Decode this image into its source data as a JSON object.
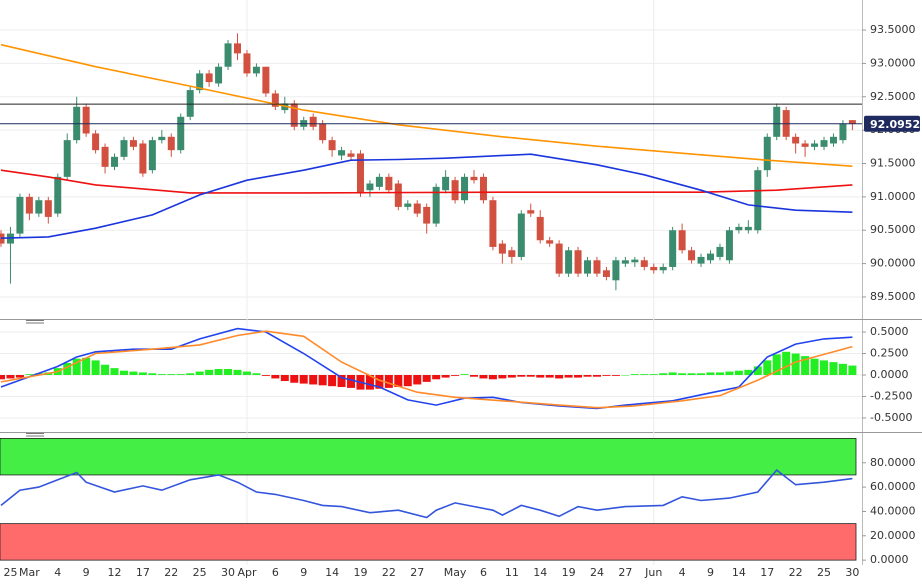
{
  "chart_data": [
    {
      "type": "candlestick",
      "x": [
        "Feb 24",
        "Feb 25",
        "Feb 26",
        "Mar 1",
        "Mar 2",
        "Mar 3",
        "Mar 4",
        "Mar 5",
        "Mar 8",
        "Mar 9",
        "Mar 10",
        "Mar 11",
        "Mar 12",
        "Mar 15",
        "Mar 16",
        "Mar 17",
        "Mar 18",
        "Mar 19",
        "Mar 22",
        "Mar 23",
        "Mar 24",
        "Mar 25",
        "Mar 26",
        "Mar 29",
        "Mar 30",
        "Mar 31",
        "Apr 1",
        "Apr 2",
        "Apr 5",
        "Apr 6",
        "Apr 7",
        "Apr 8",
        "Apr 9",
        "Apr 12",
        "Apr 13",
        "Apr 14",
        "Apr 15",
        "Apr 16",
        "Apr 19",
        "Apr 20",
        "Apr 21",
        "Apr 22",
        "Apr 23",
        "Apr 26",
        "Apr 27",
        "Apr 28",
        "Apr 29",
        "Apr 30",
        "May 3",
        "May 4",
        "May 5",
        "May 6",
        "May 7",
        "May 10",
        "May 11",
        "May 12",
        "May 13",
        "May 14",
        "May 17",
        "May 18",
        "May 19",
        "May 20",
        "May 21",
        "May 24",
        "May 25",
        "May 26",
        "May 27",
        "May 28",
        "May 31",
        "Jun 1",
        "Jun 2",
        "Jun 3",
        "Jun 4",
        "Jun 7",
        "Jun 8",
        "Jun 9",
        "Jun 10",
        "Jun 11",
        "Jun 14",
        "Jun 15",
        "Jun 16",
        "Jun 17",
        "Jun 18",
        "Jun 21",
        "Jun 22",
        "Jun 23",
        "Jun 24",
        "Jun 25",
        "Jun 28",
        "Jun 29",
        "Jun 30"
      ],
      "open": [
        90.45,
        90.3,
        90.45,
        91.0,
        90.75,
        90.95,
        90.75,
        91.3,
        91.85,
        92.35,
        91.95,
        91.75,
        91.45,
        91.6,
        91.85,
        91.8,
        91.4,
        91.85,
        91.9,
        91.7,
        92.2,
        92.6,
        92.85,
        92.7,
        92.95,
        93.3,
        93.15,
        92.85,
        92.95,
        92.55,
        92.3,
        92.4,
        92.05,
        92.2,
        92.1,
        91.85,
        91.62,
        91.65,
        91.65,
        91.1,
        91.15,
        91.3,
        91.2,
        90.85,
        90.9,
        90.85,
        90.6,
        91.1,
        91.25,
        90.95,
        91.3,
        91.3,
        90.95,
        90.3,
        90.2,
        90.1,
        90.8,
        90.7,
        90.35,
        90.3,
        89.85,
        90.2,
        89.85,
        90.05,
        89.9,
        89.75,
        90.0,
        90.02,
        90.05,
        89.95,
        89.9,
        89.95,
        90.5,
        90.2,
        90.0,
        90.05,
        90.1,
        90.05,
        90.5,
        90.5,
        90.5,
        91.4,
        91.9,
        92.3,
        91.9,
        91.8,
        91.75,
        91.75,
        91.8,
        91.85,
        92.15
      ],
      "high": [
        90.5,
        90.55,
        91.05,
        91.05,
        91.0,
        91.0,
        91.35,
        91.95,
        92.5,
        92.4,
        92.0,
        91.8,
        91.65,
        91.9,
        91.9,
        91.85,
        91.9,
        92.0,
        91.95,
        92.25,
        92.65,
        92.9,
        92.9,
        93.0,
        93.35,
        93.45,
        93.2,
        93.0,
        92.95,
        92.6,
        92.5,
        92.45,
        92.2,
        92.25,
        92.15,
        91.9,
        91.75,
        91.7,
        91.7,
        91.25,
        91.35,
        91.35,
        91.25,
        90.95,
        90.95,
        90.9,
        91.2,
        91.4,
        91.3,
        91.35,
        91.4,
        91.35,
        91.0,
        90.35,
        90.25,
        90.8,
        90.9,
        90.8,
        90.4,
        90.35,
        90.25,
        90.25,
        90.1,
        90.1,
        89.95,
        90.1,
        90.1,
        90.1,
        90.1,
        90.0,
        90.0,
        90.55,
        90.6,
        90.25,
        90.15,
        90.2,
        90.3,
        90.55,
        90.6,
        90.65,
        91.45,
        91.95,
        92.4,
        92.35,
        91.95,
        91.85,
        91.85,
        91.9,
        91.95,
        92.15,
        92.15
      ],
      "low": [
        90.25,
        89.7,
        90.4,
        90.65,
        90.7,
        90.6,
        90.7,
        91.25,
        91.8,
        91.9,
        91.65,
        91.35,
        91.4,
        91.55,
        91.7,
        91.3,
        91.35,
        91.8,
        91.6,
        91.65,
        92.15,
        92.55,
        92.65,
        92.65,
        92.9,
        93.05,
        92.8,
        92.8,
        92.5,
        92.3,
        92.25,
        92.0,
        92.0,
        92.0,
        91.8,
        91.6,
        91.55,
        91.55,
        91.0,
        91.0,
        91.1,
        91.05,
        90.8,
        90.8,
        90.7,
        90.45,
        90.55,
        91.05,
        90.9,
        90.9,
        91.2,
        90.9,
        90.2,
        90.0,
        90.0,
        90.05,
        90.7,
        90.3,
        90.25,
        89.8,
        89.8,
        89.8,
        89.8,
        89.8,
        89.75,
        89.6,
        89.95,
        89.95,
        89.9,
        89.85,
        89.85,
        89.9,
        90.15,
        90.0,
        89.95,
        90.0,
        90.05,
        90.0,
        90.45,
        90.45,
        90.45,
        91.3,
        91.85,
        91.85,
        91.65,
        91.6,
        91.7,
        91.7,
        91.75,
        91.8,
        92.0
      ],
      "close": [
        90.3,
        90.45,
        91.0,
        90.75,
        90.95,
        90.7,
        91.3,
        91.85,
        92.35,
        91.95,
        91.7,
        91.45,
        91.6,
        91.85,
        91.75,
        91.35,
        91.85,
        91.9,
        91.7,
        92.2,
        92.6,
        92.85,
        92.72,
        92.95,
        93.3,
        93.15,
        92.85,
        92.95,
        92.55,
        92.35,
        92.4,
        92.05,
        92.15,
        92.05,
        91.85,
        91.7,
        91.7,
        91.6,
        91.05,
        91.2,
        91.3,
        91.1,
        90.85,
        90.9,
        90.75,
        90.6,
        91.15,
        91.3,
        90.95,
        91.3,
        91.25,
        90.95,
        90.25,
        90.15,
        90.1,
        90.75,
        90.75,
        90.35,
        90.3,
        89.85,
        90.2,
        89.85,
        90.05,
        89.85,
        89.8,
        90.05,
        90.05,
        90.06,
        89.95,
        89.9,
        89.95,
        90.5,
        90.2,
        90.05,
        90.1,
        90.15,
        90.25,
        90.5,
        90.55,
        90.55,
        91.4,
        91.9,
        92.35,
        91.9,
        91.8,
        91.75,
        91.8,
        91.85,
        91.9,
        92.1,
        92.0952
      ],
      "up_color": "#3b8c6e",
      "down_color": "#d1503f",
      "series": [
        {
          "color": "#ff9400",
          "x": [
            "Feb 24",
            "Mar 10",
            "Mar 25",
            "Apr 9",
            "Apr 23",
            "May 10",
            "May 24",
            "Jun 8",
            "Jun 17",
            "Jun 30"
          ],
          "values": [
            93.28,
            92.95,
            92.63,
            92.3,
            92.08,
            91.9,
            91.76,
            91.63,
            91.55,
            91.46
          ]
        },
        {
          "color": "#ee1111",
          "x": [
            "Feb 24",
            "Mar 3",
            "Mar 10",
            "Mar 17",
            "Mar 24",
            "Apr 9",
            "May 10",
            "Jun 8",
            "Jun 18",
            "Jun 30"
          ],
          "values": [
            91.4,
            91.3,
            91.18,
            91.12,
            91.06,
            91.06,
            91.07,
            91.07,
            91.1,
            91.18
          ]
        },
        {
          "color": "#1a35dd",
          "x": [
            "Feb 24",
            "Mar 3",
            "Mar 10",
            "Mar 18",
            "Mar 25",
            "Apr 1",
            "Apr 9",
            "Apr 16",
            "Apr 23",
            "Apr 30",
            "May 13",
            "May 24",
            "May 31",
            "Jun 8",
            "Jun 15",
            "Jun 22",
            "Jun 30"
          ],
          "values": [
            90.38,
            90.4,
            90.53,
            90.73,
            91.03,
            91.25,
            91.4,
            91.55,
            91.56,
            91.58,
            91.64,
            91.48,
            91.33,
            91.1,
            90.88,
            90.8,
            90.77
          ]
        }
      ],
      "hline": 92.39,
      "last_price": 92.0952,
      "vlines": [
        "Apr 1",
        "Jun 1"
      ],
      "ylim": [
        89.185,
        93.95
      ],
      "yticks": [
        {
          "value": 89.5,
          "label": "89.5000"
        },
        {
          "value": 90,
          "label": "90.0000"
        },
        {
          "value": 90.5,
          "label": "90.5000"
        },
        {
          "value": 91,
          "label": "91.0000"
        },
        {
          "value": 91.5,
          "label": "91.5000"
        },
        {
          "value": 92,
          "label": "92.0000"
        },
        {
          "value": 92.5,
          "label": "92.5000"
        },
        {
          "value": 93,
          "label": "93.0000"
        },
        {
          "value": 93.5,
          "label": "93.5000"
        }
      ],
      "grid": true
    },
    {
      "type": "macd",
      "histogram": [
        -0.05,
        -0.04,
        -0.03,
        0.01,
        0.02,
        0.03,
        0.08,
        0.14,
        0.19,
        0.2,
        0.17,
        0.12,
        0.08,
        0.05,
        0.04,
        0.03,
        0.02,
        0.01,
        0.01,
        0.01,
        0.02,
        0.04,
        0.06,
        0.07,
        0.07,
        0.06,
        0.04,
        0.02,
        -0.01,
        -0.04,
        -0.07,
        -0.09,
        -0.1,
        -0.11,
        -0.12,
        -0.13,
        -0.14,
        -0.15,
        -0.17,
        -0.17,
        -0.16,
        -0.15,
        -0.14,
        -0.13,
        -0.11,
        -0.08,
        -0.05,
        -0.03,
        -0.01,
        0.01,
        -0.02,
        -0.04,
        -0.05,
        -0.04,
        -0.03,
        -0.02,
        -0.02,
        -0.03,
        -0.03,
        -0.04,
        -0.03,
        -0.03,
        -0.02,
        -0.02,
        -0.01,
        -0.01,
        0.0,
        0.01,
        0.01,
        0.01,
        0.02,
        0.03,
        0.02,
        0.02,
        0.02,
        0.03,
        0.03,
        0.04,
        0.05,
        0.06,
        0.1,
        0.17,
        0.24,
        0.27,
        0.25,
        0.22,
        0.19,
        0.17,
        0.15,
        0.13,
        0.11
      ],
      "up_color": "#22ee22",
      "down_color": "#ee1111",
      "series": [
        {
          "color": "#2244ee",
          "x": [
            "Feb 24",
            "Mar 1",
            "Mar 4",
            "Mar 8",
            "Mar 10",
            "Mar 16",
            "Mar 22",
            "Mar 25",
            "Mar 31",
            "Apr 5",
            "Apr 9",
            "Apr 15",
            "Apr 21",
            "Apr 26",
            "Apr 29",
            "May 4",
            "May 7",
            "May 12",
            "May 18",
            "May 24",
            "May 27",
            "Jun 3",
            "Jun 8",
            "Jun 14",
            "Jun 17",
            "Jun 22",
            "Jun 25",
            "Jun 30"
          ],
          "values": [
            -0.14,
            -0.02,
            0.1,
            0.21,
            0.27,
            0.3,
            0.3,
            0.42,
            0.54,
            0.5,
            0.25,
            -0.03,
            -0.14,
            -0.29,
            -0.35,
            -0.27,
            -0.26,
            -0.32,
            -0.36,
            -0.39,
            -0.35,
            -0.3,
            -0.23,
            -0.14,
            0.21,
            0.36,
            0.42,
            0.44
          ]
        },
        {
          "color": "#ff8a2a",
          "x": [
            "Feb 24",
            "Mar 4",
            "Mar 10",
            "Mar 18",
            "Mar 25",
            "Mar 31",
            "Apr 5",
            "Apr 9",
            "Apr 15",
            "Apr 21",
            "Apr 27",
            "May 3",
            "May 10",
            "May 18",
            "May 24",
            "May 28",
            "Jun 4",
            "Jun 10",
            "Jun 16",
            "Jun 22",
            "Jun 30"
          ],
          "values": [
            -0.08,
            0.04,
            0.25,
            0.3,
            0.35,
            0.46,
            0.51,
            0.45,
            0.15,
            -0.06,
            -0.2,
            -0.26,
            -0.3,
            -0.35,
            -0.38,
            -0.36,
            -0.3,
            -0.24,
            -0.06,
            0.15,
            0.33
          ]
        }
      ],
      "ylim": [
        -0.64,
        0.64
      ],
      "yticks": [
        {
          "value": -0.5,
          "label": "-0.5000"
        },
        {
          "value": -0.25,
          "label": "-0.2500"
        },
        {
          "value": 0,
          "label": "0.0000"
        },
        {
          "value": 0.25,
          "label": "0.2500"
        },
        {
          "value": 0.5,
          "label": "0.5000"
        }
      ],
      "grid": true
    },
    {
      "type": "line",
      "zones": [
        {
          "range": [
            70,
            100
          ],
          "color": "#44ee44"
        },
        {
          "range": [
            0,
            30
          ],
          "color": "#ff6b6b"
        }
      ],
      "series": [
        {
          "color": "#3355dd",
          "x": [
            "Feb 24",
            "Feb 26",
            "Mar 2",
            "Mar 4",
            "Mar 8",
            "Mar 9",
            "Mar 12",
            "Mar 17",
            "Mar 19",
            "Mar 24",
            "Mar 29",
            "Mar 31",
            "Apr 2",
            "Apr 6",
            "Apr 9",
            "Apr 13",
            "Apr 15",
            "Apr 20",
            "Apr 23",
            "Apr 28",
            "Apr 29",
            "May 3",
            "May 7",
            "May 10",
            "May 12",
            "May 14",
            "May 18",
            "May 20",
            "May 24",
            "May 27",
            "Jun 2",
            "Jun 4",
            "Jun 8",
            "Jun 11",
            "Jun 16",
            "Jun 18",
            "Jun 22",
            "Jun 25",
            "Jun 30"
          ],
          "values": [
            45,
            57.5,
            60,
            66,
            72,
            64,
            56,
            61,
            57.5,
            66,
            70,
            64,
            56,
            54,
            49,
            45,
            44,
            39,
            41,
            35,
            41,
            47,
            41,
            37,
            45,
            41,
            36,
            44,
            41,
            44,
            45,
            52,
            49,
            51,
            56,
            74,
            62,
            64,
            67
          ]
        }
      ],
      "ylim": [
        -4,
        102
      ],
      "yticks": [
        {
          "value": 0,
          "label": "0.0000"
        },
        {
          "value": 20,
          "label": "20.0000"
        },
        {
          "value": 40,
          "label": "40.0000"
        },
        {
          "value": 60,
          "label": "60.0000"
        },
        {
          "value": 80,
          "label": "80.0000"
        }
      ],
      "grid": true,
      "xticks": [
        {
          "value": "Feb 25",
          "label": "25"
        },
        {
          "value": "Mar 1",
          "label": "Mar"
        },
        {
          "value": "Mar 4",
          "label": "4"
        },
        {
          "value": "Mar 9",
          "label": "9"
        },
        {
          "value": "Mar 12",
          "label": "12"
        },
        {
          "value": "Mar 17",
          "label": "17"
        },
        {
          "value": "Mar 22",
          "label": "22"
        },
        {
          "value": "Mar 25",
          "label": "25"
        },
        {
          "value": "Mar 30",
          "label": "30"
        },
        {
          "value": "Apr 1",
          "label": "Apr"
        },
        {
          "value": "Apr 6",
          "label": "6"
        },
        {
          "value": "Apr 9",
          "label": "9"
        },
        {
          "value": "Apr 14",
          "label": "14"
        },
        {
          "value": "Apr 19",
          "label": "19"
        },
        {
          "value": "Apr 22",
          "label": "22"
        },
        {
          "value": "Apr 27",
          "label": "27"
        },
        {
          "value": "May 3",
          "label": "May"
        },
        {
          "value": "May 6",
          "label": "6"
        },
        {
          "value": "May 11",
          "label": "11"
        },
        {
          "value": "May 14",
          "label": "14"
        },
        {
          "value": "May 19",
          "label": "19"
        },
        {
          "value": "May 24",
          "label": "24"
        },
        {
          "value": "May 27",
          "label": "27"
        },
        {
          "value": "Jun 1",
          "label": "Jun"
        },
        {
          "value": "Jun 4",
          "label": "4"
        },
        {
          "value": "Jun 9",
          "label": "9"
        },
        {
          "value": "Jun 14",
          "label": "14"
        },
        {
          "value": "Jun 17",
          "label": "17"
        },
        {
          "value": "Jun 22",
          "label": "22"
        },
        {
          "value": "Jun 25",
          "label": "25"
        },
        {
          "value": "Jun 30",
          "label": "30"
        }
      ]
    }
  ]
}
